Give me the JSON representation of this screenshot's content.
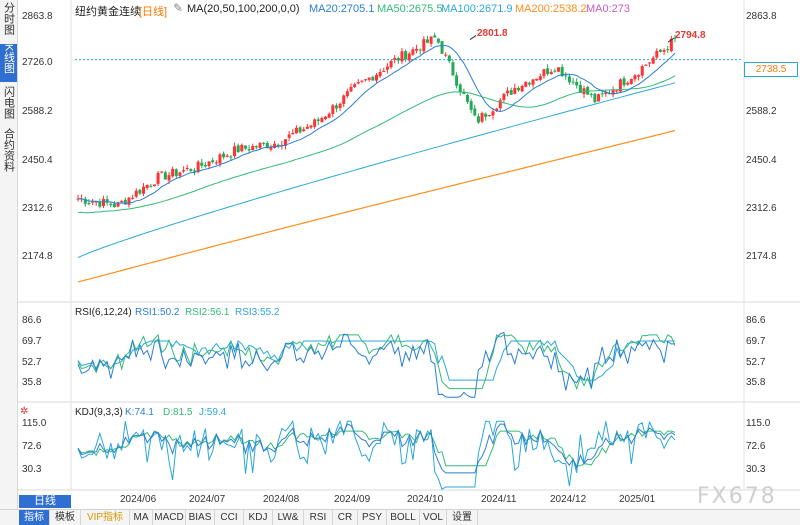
{
  "sidebar": {
    "tabs": [
      {
        "label": "分时图",
        "active": false
      },
      {
        "label": "K线图",
        "active": true
      },
      {
        "label": "闪电图",
        "active": false
      },
      {
        "label": "合约资料",
        "active": false
      }
    ]
  },
  "header": {
    "instrument": "纽约黄金连续",
    "period": "[日线]",
    "ma_label": "MA(20,50,100,200,0,0)",
    "ma20": "MA20:2705.1",
    "ma50": "MA50:2675.5",
    "ma100": "MA100:2671.9",
    "ma200": "MA200:2538.2",
    "ma0": "MA0:273"
  },
  "price_axis": [
    "2863.8",
    "2726.0",
    "2588.2",
    "2450.4",
    "2312.6",
    "2174.8"
  ],
  "price_labels": {
    "high_1": "2801.8",
    "high_2": "2794.8",
    "last": "2738.5"
  },
  "rsi": {
    "label": "RSI(6,12,24)",
    "rsi1": "RSI1:50.2",
    "rsi2": "RSI2:56.1",
    "rsi3": "RSI3:55.2",
    "axis": [
      "86.6",
      "69.7",
      "52.7",
      "35.8"
    ]
  },
  "kdj": {
    "label": "KDJ(9,3,3)",
    "k": "K:74.1",
    "d": "D:81.5",
    "j": "J:59.4",
    "axis": [
      "115.0",
      "72.6",
      "30.3"
    ]
  },
  "time_axis": [
    "2024/06",
    "2024/07",
    "2024/08",
    "2024/09",
    "2024/10",
    "2024/11",
    "2024/12",
    "2025/01"
  ],
  "period_button": "日线",
  "watermark": "FX678",
  "bottom_tabs": [
    {
      "label": "指标",
      "active": true
    },
    {
      "label": "模板",
      "active": false
    },
    {
      "label": "VIP指标",
      "active": false,
      "vip": true
    },
    {
      "label": "MA",
      "active": false
    },
    {
      "label": "MACD",
      "active": false
    },
    {
      "label": "BIAS",
      "active": false
    },
    {
      "label": "CCI",
      "active": false
    },
    {
      "label": "KDJ",
      "active": false
    },
    {
      "label": "LW&",
      "active": false
    },
    {
      "label": "RSI",
      "active": false
    },
    {
      "label": "CR",
      "active": false
    },
    {
      "label": "PSY",
      "active": false
    },
    {
      "label": "BOLL",
      "active": false
    },
    {
      "label": "VOL",
      "active": false
    },
    {
      "label": "设置",
      "active": false
    }
  ],
  "colors": {
    "up": "#ff3333",
    "down": "#22aa55",
    "ma20": "#2a7fd4",
    "ma50": "#33bb77",
    "ma100": "#2aa8d8",
    "ma200": "#ff8c1a",
    "last_price": "#2aa8d8",
    "accent": "#2f6fd1"
  },
  "chart_data": {
    "type": "candlestick",
    "title": "纽约黄金连续 [日线]",
    "ylim": [
      2100,
      2900
    ],
    "months": [
      "2024/06",
      "2024/07",
      "2024/08",
      "2024/09",
      "2024/10",
      "2024/11",
      "2024/12",
      "2025/01"
    ],
    "close_profile": [
      [
        "2024/05 end",
        2340
      ],
      [
        "2024/06",
        2320
      ],
      [
        "2024/07",
        2400
      ],
      [
        "2024/07 end",
        2430
      ],
      [
        "2024/08",
        2480
      ],
      [
        "2024/08 end",
        2500
      ],
      [
        "2024/09",
        2560
      ],
      [
        "2024/09 end",
        2660
      ],
      [
        "2024/10",
        2740
      ],
      [
        "2024/10 end",
        2801.8
      ],
      [
        "2024/11",
        2560
      ],
      [
        "2024/11 end",
        2660
      ],
      [
        "2024/12",
        2720
      ],
      [
        "2024/12 end",
        2620
      ],
      [
        "2025/01",
        2700
      ],
      [
        "2025/01 end",
        2794.8
      ]
    ],
    "moving_averages": {
      "MA20": 2705.1,
      "MA50": 2675.5,
      "MA100": 2671.9,
      "MA200": 2538.2
    },
    "last_price": 2738.5,
    "indicators": {
      "RSI": {
        "RSI1": 50.2,
        "RSI2": 56.1,
        "RSI3": 55.2
      },
      "KDJ": {
        "K": 74.1,
        "D": 81.5,
        "J": 59.4
      }
    }
  }
}
